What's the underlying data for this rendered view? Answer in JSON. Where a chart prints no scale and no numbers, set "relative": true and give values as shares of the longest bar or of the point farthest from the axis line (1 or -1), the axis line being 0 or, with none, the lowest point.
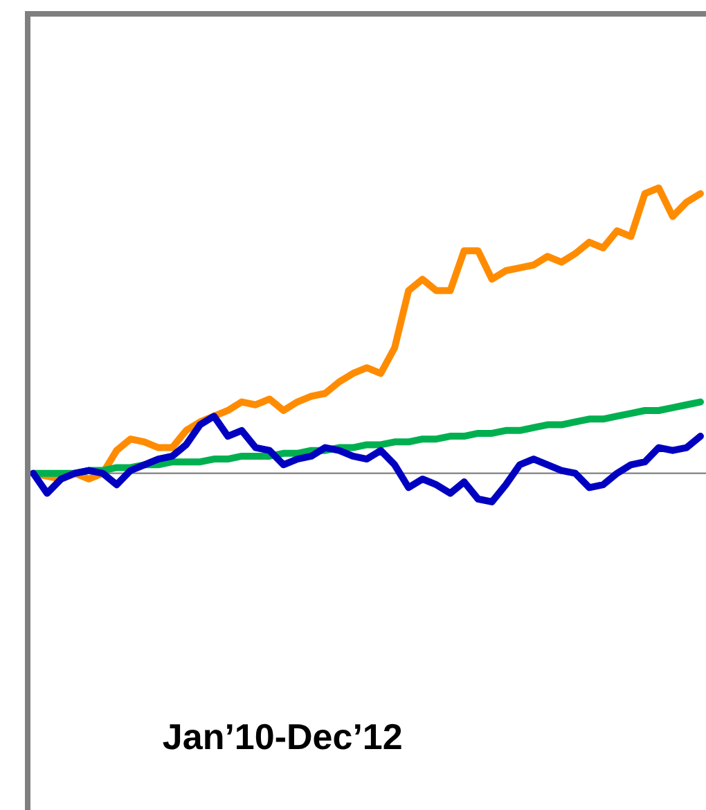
{
  "chart_data": {
    "type": "line",
    "relative": true,
    "annotations": [
      "Jan’10-Dec’12"
    ],
    "line_style": "solid",
    "categories": [
      null,
      null,
      null,
      null,
      null,
      null,
      null,
      null,
      null,
      null,
      null,
      null,
      null,
      null,
      null,
      null,
      null,
      null,
      null,
      null,
      null,
      null,
      null,
      null,
      null,
      null,
      null,
      null,
      null,
      null,
      null,
      null,
      null,
      null,
      null,
      null,
      null,
      null,
      null,
      null,
      null,
      null,
      null,
      null,
      null,
      null,
      null,
      null,
      null
    ],
    "ref_lines": [
      {
        "axis": "y",
        "value": 0,
        "color": "#808080"
      }
    ],
    "series": [
      {
        "color": "#ff8c00",
        "values": [
          0,
          -0.01,
          -0.02,
          0,
          -0.02,
          0,
          0.08,
          0.12,
          0.11,
          0.09,
          0.09,
          0.15,
          0.18,
          0.2,
          0.22,
          0.25,
          0.24,
          0.26,
          0.22,
          0.25,
          0.27,
          0.28,
          0.32,
          0.35,
          0.37,
          0.35,
          0.44,
          0.64,
          0.68,
          0.64,
          0.64,
          0.78,
          0.78,
          0.68,
          0.71,
          0.72,
          0.73,
          0.76,
          0.74,
          0.77,
          0.81,
          0.79,
          0.85,
          0.83,
          0.98,
          1,
          0.9,
          0.95,
          0.98
        ]
      },
      {
        "color": "#00b050",
        "values": [
          0,
          0,
          0,
          0,
          0.01,
          0.01,
          0.02,
          0.02,
          0.03,
          0.03,
          0.04,
          0.04,
          0.04,
          0.05,
          0.05,
          0.06,
          0.06,
          0.06,
          0.07,
          0.07,
          0.08,
          0.08,
          0.09,
          0.09,
          0.1,
          0.1,
          0.11,
          0.11,
          0.12,
          0.12,
          0.13,
          0.13,
          0.14,
          0.14,
          0.15,
          0.15,
          0.16,
          0.17,
          0.17,
          0.18,
          0.19,
          0.19,
          0.2,
          0.21,
          0.22,
          0.22,
          0.23,
          0.24,
          0.25
        ]
      },
      {
        "color": "#0000c0",
        "values": [
          0,
          -0.07,
          -0.02,
          0,
          0.01,
          0,
          -0.04,
          0.01,
          0.03,
          0.05,
          0.06,
          0.1,
          0.17,
          0.2,
          0.13,
          0.15,
          0.09,
          0.08,
          0.03,
          0.05,
          0.06,
          0.09,
          0.08,
          0.06,
          0.05,
          0.08,
          0.03,
          -0.05,
          -0.02,
          -0.04,
          -0.07,
          -0.03,
          -0.09,
          -0.1,
          -0.04,
          0.03,
          0.05,
          0.03,
          0.01,
          0,
          -0.05,
          -0.04,
          0,
          0.03,
          0.04,
          0.09,
          0.08,
          0.09,
          0.13
        ]
      }
    ]
  }
}
